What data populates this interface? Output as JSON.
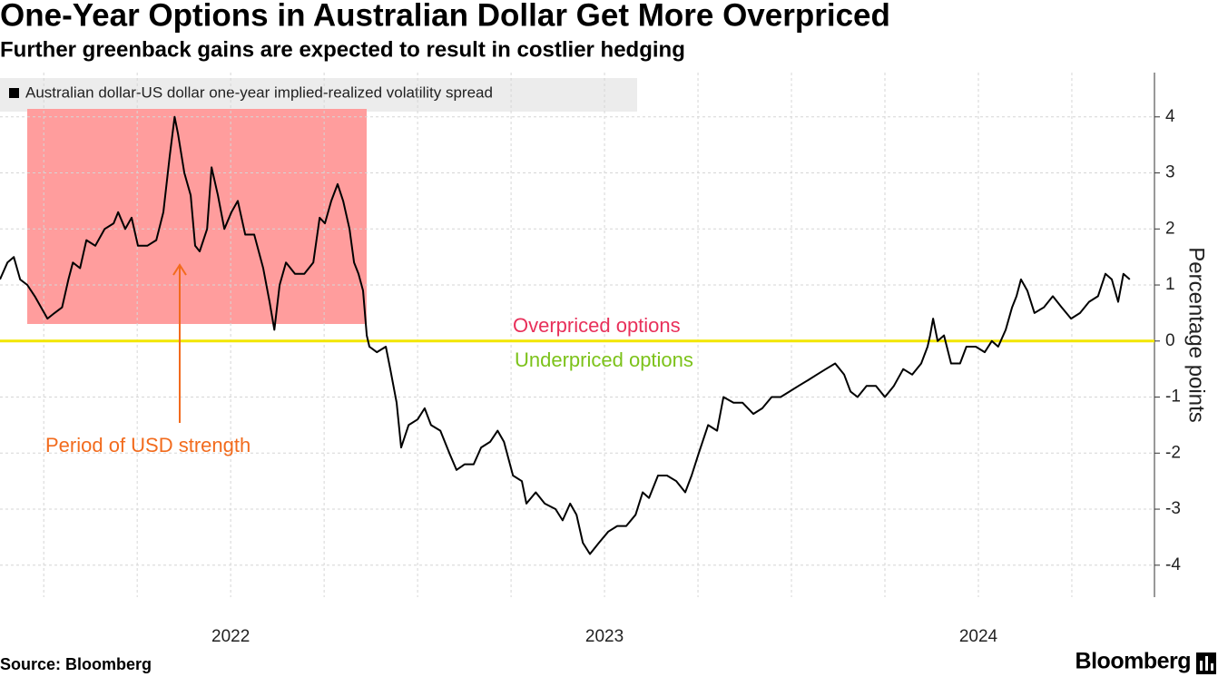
{
  "chart_data": {
    "type": "line",
    "title": "One-Year Options in Australian Dollar Get More Overpriced",
    "subtitle": "Further greenback gains are expected to result in costlier hedging",
    "source": "Source: Bloomberg",
    "brand": "Bloomberg",
    "y_label": "Percentage points",
    "annotations": [
      "Overpriced options",
      "Underpriced options",
      "Period of USD strength"
    ],
    "annotation_colors": [
      "#e8305a",
      "#7cc21a",
      "#f26b1d"
    ],
    "region_color": "#ff9d9d",
    "hline": {
      "value": 0,
      "color": "#f2e600"
    },
    "grid": true,
    "xlim": [
      2021.883,
      2024.971
    ],
    "ylim": [
      -4.57,
      4.79
    ],
    "xticks": [
      {
        "value": 2022.5,
        "label": "2022"
      },
      {
        "value": 2023.5,
        "label": "2023"
      },
      {
        "value": 2024.5,
        "label": "2024"
      }
    ],
    "xgrid": [
      2022,
      2022.25,
      2022.5,
      2022.75,
      2023,
      2023.25,
      2023.5,
      2023.75,
      2024,
      2024.25,
      2024.5,
      2024.75
    ],
    "yticks": [
      -4,
      -3,
      -2,
      -1,
      0,
      1,
      2,
      3,
      4
    ],
    "x": [
      2021.883,
      2021.903,
      2021.92,
      2021.937,
      2021.956,
      2021.976,
      2021.993,
      2022.01,
      2022.029,
      2022.049,
      2022.066,
      2022.078,
      2022.097,
      2022.114,
      2022.138,
      2022.163,
      2022.187,
      2022.199,
      2022.218,
      2022.235,
      2022.252,
      2022.277,
      2022.301,
      2022.32,
      2022.337,
      2022.35,
      2022.359,
      2022.376,
      2022.393,
      2022.405,
      2022.417,
      2022.437,
      2022.449,
      2022.466,
      2022.483,
      2022.502,
      2022.519,
      2022.539,
      2022.563,
      2022.587,
      2022.604,
      2022.617,
      2022.631,
      2022.648,
      2022.672,
      2022.697,
      2022.721,
      2022.738,
      2022.752,
      2022.769,
      2022.786,
      2022.801,
      2022.818,
      2022.83,
      2022.842,
      2022.854,
      2022.864,
      2022.871,
      2022.891,
      2022.915,
      2022.927,
      2022.944,
      2022.956,
      2022.976,
      2023.0,
      2023.019,
      2023.036,
      2023.061,
      2023.085,
      2023.104,
      2023.126,
      2023.15,
      2023.17,
      2023.194,
      2023.214,
      2023.231,
      2023.255,
      2023.279,
      2023.291,
      2023.316,
      2023.34,
      2023.369,
      2023.388,
      2023.408,
      2023.425,
      2023.442,
      2023.461,
      2023.485,
      2023.51,
      2023.534,
      2023.558,
      2023.583,
      2023.602,
      2023.619,
      2023.643,
      2023.667,
      2023.692,
      2023.716,
      2023.733,
      2023.752,
      2023.777,
      2023.801,
      2023.818,
      2023.845,
      2023.869,
      2023.898,
      2023.922,
      2023.947,
      2023.971,
      2023.995,
      2024.019,
      2024.044,
      2024.068,
      2024.092,
      2024.117,
      2024.141,
      2024.158,
      2024.177,
      2024.201,
      2024.226,
      2024.25,
      2024.274,
      2024.299,
      2024.323,
      2024.347,
      2024.364,
      2024.371,
      2024.379,
      2024.391,
      2024.408,
      2024.427,
      2024.451,
      2024.468,
      2024.493,
      2024.517,
      2024.536,
      2024.553,
      2024.573,
      2024.59,
      2024.602,
      2024.614,
      2024.631,
      2024.65,
      2024.675,
      2024.699,
      2024.723,
      2024.748,
      2024.772,
      2024.796,
      2024.82,
      2024.84,
      2024.857,
      2024.874,
      2024.888,
      2024.905
    ],
    "series": [
      {
        "name": "Australian dollar-US dollar one-year implied-realized volatility spread",
        "color": "#000000",
        "values": [
          1.1,
          1.4,
          1.5,
          1.1,
          1.0,
          0.8,
          0.6,
          0.4,
          0.5,
          0.6,
          1.1,
          1.4,
          1.3,
          1.8,
          1.7,
          2.0,
          2.1,
          2.3,
          2.0,
          2.2,
          1.7,
          1.7,
          1.8,
          2.3,
          3.3,
          4.0,
          3.7,
          3.0,
          2.6,
          1.7,
          1.6,
          2.0,
          3.1,
          2.6,
          2.0,
          2.3,
          2.5,
          1.9,
          1.9,
          1.3,
          0.7,
          0.2,
          1.0,
          1.4,
          1.2,
          1.2,
          1.4,
          2.2,
          2.1,
          2.5,
          2.8,
          2.5,
          2.0,
          1.4,
          1.2,
          0.9,
          0.1,
          -0.1,
          -0.2,
          -0.1,
          -0.5,
          -1.1,
          -1.9,
          -1.5,
          -1.4,
          -1.2,
          -1.5,
          -1.6,
          -2.0,
          -2.3,
          -2.2,
          -2.2,
          -1.9,
          -1.8,
          -1.6,
          -1.8,
          -2.4,
          -2.5,
          -2.9,
          -2.7,
          -2.9,
          -3.0,
          -3.2,
          -2.9,
          -3.1,
          -3.6,
          -3.8,
          -3.6,
          -3.4,
          -3.3,
          -3.3,
          -3.1,
          -2.7,
          -2.8,
          -2.4,
          -2.4,
          -2.5,
          -2.7,
          -2.4,
          -2.0,
          -1.5,
          -1.6,
          -1.0,
          -1.1,
          -1.1,
          -1.3,
          -1.2,
          -1.0,
          -1.0,
          -0.9,
          -0.8,
          -0.7,
          -0.6,
          -0.5,
          -0.4,
          -0.6,
          -0.9,
          -1.0,
          -0.8,
          -0.8,
          -1.0,
          -0.8,
          -0.5,
          -0.6,
          -0.4,
          -0.1,
          0.1,
          0.4,
          0.0,
          0.1,
          -0.4,
          -0.4,
          -0.1,
          -0.1,
          -0.2,
          0.0,
          -0.1,
          0.2,
          0.6,
          0.8,
          1.1,
          0.9,
          0.5,
          0.6,
          0.8,
          0.6,
          0.4,
          0.5,
          0.7,
          0.8,
          1.2,
          1.1,
          0.7,
          1.2,
          1.1
        ]
      }
    ]
  }
}
